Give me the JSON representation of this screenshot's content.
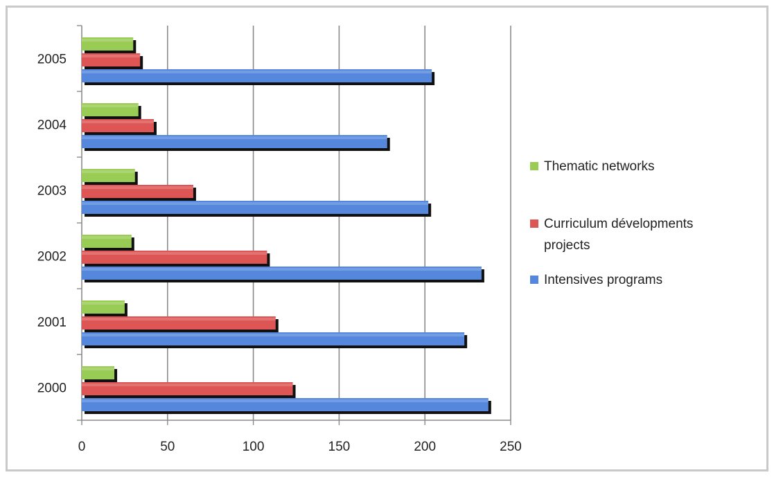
{
  "chart_data": {
    "type": "bar",
    "orientation": "horizontal",
    "categories": [
      "2000",
      "2001",
      "2002",
      "2003",
      "2004",
      "2005"
    ],
    "series": [
      {
        "name": "Intensives programs",
        "values": [
          237,
          223,
          233,
          202,
          178,
          204
        ]
      },
      {
        "name": "Curriculum dévelopments projects",
        "values": [
          123,
          113,
          108,
          65,
          42,
          34
        ]
      },
      {
        "name": "Thematic networks",
        "values": [
          19,
          25,
          29,
          31,
          33,
          30
        ]
      }
    ],
    "legend": {
      "position": "right",
      "items": [
        {
          "lines": [
            "Thematic networks"
          ],
          "color": "#99cc55"
        },
        {
          "lines": [
            "Curriculum dévelopments",
            "projects"
          ],
          "color": "#dd5555"
        },
        {
          "lines": [
            "Intensives programs"
          ],
          "color": "#5588dd"
        }
      ]
    },
    "x_ticks": [
      "0",
      "50",
      "100",
      "150",
      "200",
      "250"
    ],
    "xlim": [
      0,
      250
    ],
    "grid": "vertical",
    "colors": {
      "Intensives programs": "#5588dd",
      "Curriculum dévelopments projects": "#dd5555",
      "Thematic networks": "#99cc55"
    },
    "title": "",
    "xlabel": "",
    "ylabel": ""
  }
}
